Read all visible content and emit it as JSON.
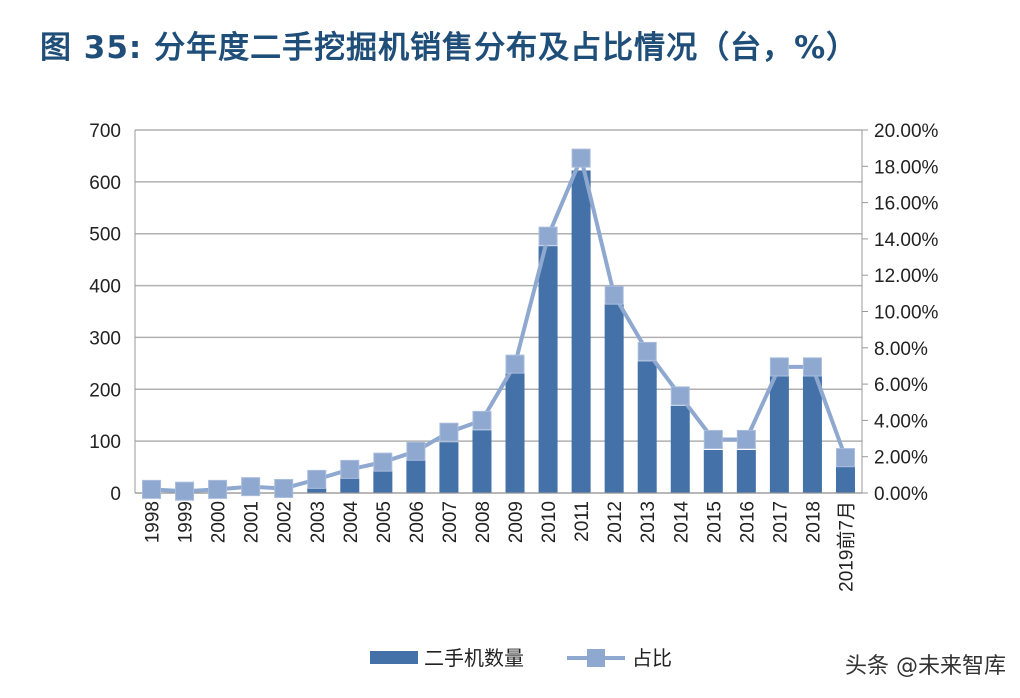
{
  "title": "图 35: 分年度二手挖掘机销售分布及占比情况（台，%）",
  "watermark": "头条 @未来智库",
  "chart_data": {
    "type": "bar+line",
    "categories": [
      "1998",
      "1999",
      "2000",
      "2001",
      "2002",
      "2003",
      "2004",
      "2005",
      "2006",
      "2007",
      "2008",
      "2009",
      "2010",
      "2011",
      "2012",
      "2013",
      "2014",
      "2015",
      "2016",
      "2017",
      "2018",
      "2019前7月"
    ],
    "series": [
      {
        "name": "二手机数量",
        "type": "bar",
        "axis": "left",
        "color": "#4472a8",
        "values": [
          1,
          1,
          2,
          3,
          2,
          10,
          28,
          42,
          63,
          98,
          121,
          232,
          476,
          622,
          364,
          254,
          168,
          83,
          83,
          225,
          225,
          50
        ]
      },
      {
        "name": "占比",
        "type": "line",
        "axis": "right",
        "color": "#8fa8d0",
        "values": [
          0.2,
          0.1,
          0.2,
          0.35,
          0.25,
          0.75,
          1.3,
          1.7,
          2.3,
          3.35,
          4.0,
          7.1,
          14.15,
          18.45,
          10.9,
          7.8,
          5.35,
          2.95,
          2.95,
          6.95,
          6.95,
          1.95
        ]
      }
    ],
    "ylim_left": [
      0,
      700
    ],
    "yticks_left": [
      "0",
      "100",
      "200",
      "300",
      "400",
      "500",
      "600",
      "700"
    ],
    "ylim_right": [
      0,
      20
    ],
    "yticks_right": [
      "0.00%",
      "2.00%",
      "4.00%",
      "6.00%",
      "8.00%",
      "10.00%",
      "12.00%",
      "14.00%",
      "16.00%",
      "18.00%",
      "20.00%"
    ],
    "grid": true,
    "legend": "bottom"
  }
}
